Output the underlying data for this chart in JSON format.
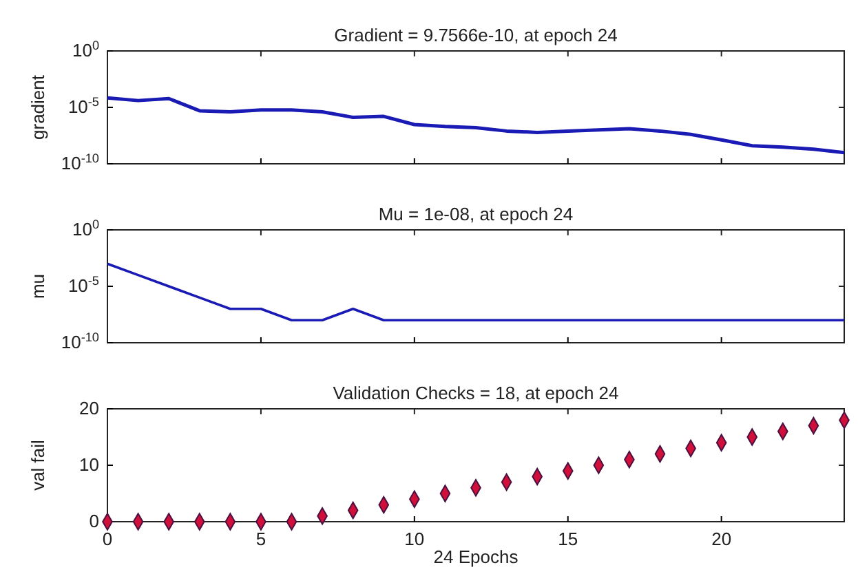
{
  "chart_data": [
    {
      "type": "line",
      "title": "Gradient = 9.7566e-10, at epoch 24",
      "ylabel": "gradient",
      "x": [
        0,
        1,
        2,
        3,
        4,
        5,
        6,
        7,
        8,
        9,
        10,
        11,
        12,
        13,
        14,
        15,
        16,
        17,
        18,
        19,
        20,
        21,
        22,
        23,
        24
      ],
      "values": [
        7e-05,
        4e-05,
        6e-05,
        5e-06,
        4e-06,
        6e-06,
        6e-06,
        4e-06,
        1.3e-06,
        1.6e-06,
        3e-07,
        2e-07,
        1.6e-07,
        8e-08,
        6e-08,
        8e-08,
        1e-07,
        1.3e-07,
        8e-08,
        4e-08,
        1.3e-08,
        4e-09,
        3e-09,
        2e-09,
        9.7566e-10
      ],
      "color": "#1a1ab4",
      "xlim": [
        0,
        24
      ],
      "xticks": [
        0,
        5,
        10,
        15,
        20
      ],
      "ylim": [
        1e-10,
        1
      ],
      "yticks": [
        {
          "value": 1,
          "label": "10$^{0}$"
        },
        {
          "value": 1e-05,
          "label": "10$^{-5}$"
        },
        {
          "value": 1e-10,
          "label": "10$^{-10}$"
        }
      ],
      "log": "y",
      "tick_labels": "y"
    },
    {
      "type": "line",
      "title": "Mu = 1e-08, at epoch 24",
      "ylabel": "mu",
      "x": [
        0,
        1,
        2,
        3,
        4,
        5,
        6,
        7,
        8,
        9,
        10,
        11,
        12,
        13,
        14,
        15,
        16,
        17,
        18,
        19,
        20,
        21,
        22,
        23,
        24
      ],
      "values": [
        0.001,
        0.0001,
        1e-05,
        1e-06,
        1e-07,
        1e-07,
        1e-08,
        1e-08,
        1e-07,
        1e-08,
        1e-08,
        1e-08,
        1e-08,
        1e-08,
        1e-08,
        1e-08,
        1e-08,
        1e-08,
        1e-08,
        1e-08,
        1e-08,
        1e-08,
        1e-08,
        1e-08,
        1e-08
      ],
      "color": "#1a1ab4",
      "xlim": [
        0,
        24
      ],
      "xticks": [
        0,
        5,
        10,
        15,
        20
      ],
      "ylim": [
        1e-10,
        1
      ],
      "yticks": [
        {
          "value": 1,
          "label": "10$^{0}$"
        },
        {
          "value": 1e-05,
          "label": "10$^{-5}$"
        },
        {
          "value": 1e-10,
          "label": "10$^{-10}$"
        }
      ],
      "log": "y",
      "tick_labels": "y"
    },
    {
      "type": "scatter",
      "title": "Validation Checks = 18, at epoch 24",
      "xlabel": "24 Epochs",
      "ylabel": "val fail",
      "x": [
        0,
        1,
        2,
        3,
        4,
        5,
        6,
        7,
        8,
        9,
        10,
        11,
        12,
        13,
        14,
        15,
        16,
        17,
        18,
        19,
        20,
        21,
        22,
        23,
        24
      ],
      "values": [
        0,
        0,
        0,
        0,
        0,
        0,
        0,
        1,
        2,
        3,
        4,
        5,
        6,
        7,
        8,
        9,
        10,
        11,
        12,
        13,
        14,
        15,
        16,
        17,
        18
      ],
      "color": "#d0103a",
      "marker": "diamond",
      "xlim": [
        0,
        24
      ],
      "xticks": [
        0,
        5,
        10,
        15,
        20
      ],
      "ylim": [
        0,
        20
      ],
      "yticks": [
        0,
        10,
        20
      ]
    }
  ]
}
